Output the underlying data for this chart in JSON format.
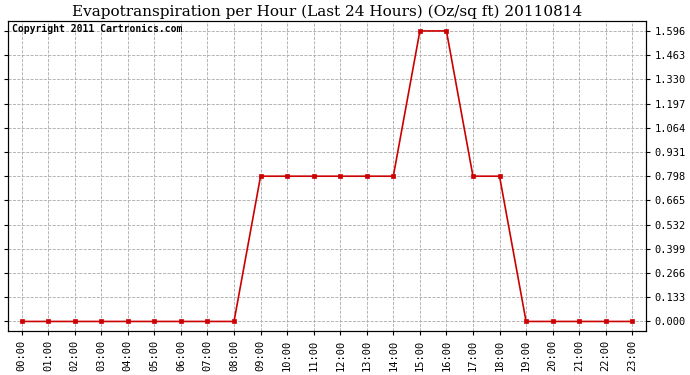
{
  "title": "Evapotranspiration per Hour (Last 24 Hours) (Oz/sq ft) 20110814",
  "copyright_text": "Copyright 2011 Cartronics.com",
  "hours": [
    0,
    1,
    2,
    3,
    4,
    5,
    6,
    7,
    8,
    9,
    10,
    11,
    12,
    13,
    14,
    15,
    16,
    17,
    18,
    19,
    20,
    21,
    22,
    23
  ],
  "values": [
    0.0,
    0.0,
    0.0,
    0.0,
    0.0,
    0.0,
    0.0,
    0.0,
    0.0,
    0.798,
    0.798,
    0.798,
    0.798,
    0.798,
    0.798,
    1.596,
    1.596,
    0.798,
    0.798,
    0.0,
    0.0,
    0.0,
    0.0,
    0.0
  ],
  "x_labels": [
    "00:00",
    "01:00",
    "02:00",
    "03:00",
    "04:00",
    "05:00",
    "06:00",
    "07:00",
    "08:00",
    "09:00",
    "10:00",
    "11:00",
    "12:00",
    "13:00",
    "14:00",
    "15:00",
    "16:00",
    "17:00",
    "18:00",
    "19:00",
    "20:00",
    "21:00",
    "22:00",
    "23:00"
  ],
  "y_ticks": [
    0.0,
    0.133,
    0.266,
    0.399,
    0.532,
    0.665,
    0.798,
    0.931,
    1.064,
    1.197,
    1.33,
    1.463,
    1.596
  ],
  "line_color": "#cc0000",
  "marker": "s",
  "marker_size": 3,
  "bg_color": "#ffffff",
  "plot_bg_color": "#ffffff",
  "grid_color": "#aaaaaa",
  "title_fontsize": 11,
  "copyright_fontsize": 7,
  "tick_fontsize": 7.5,
  "ylim_min": -0.05,
  "ylim_max": 1.65,
  "xlim_min": -0.5,
  "xlim_max": 23.5
}
